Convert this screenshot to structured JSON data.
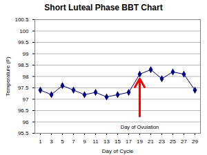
{
  "chart_data": {
    "type": "line",
    "title": "Short Luteal Phase BBT Chart",
    "x_label": "Day of Cycle",
    "y_label": "Temperature (F)",
    "x": [
      1,
      3,
      5,
      7,
      9,
      11,
      13,
      15,
      17,
      19,
      21,
      23,
      25,
      27,
      29
    ],
    "series": [
      {
        "name": "Temperature",
        "color": "#000080",
        "marker": "diamond",
        "line_style": "solid",
        "values": [
          97.4,
          97.2,
          97.6,
          97.4,
          97.2,
          97.3,
          97.1,
          97.2,
          97.3,
          98.1,
          98.3,
          97.9,
          98.2,
          98.1,
          97.4
        ]
      }
    ],
    "xlim": [
      0,
      30
    ],
    "xticks": [
      1,
      3,
      5,
      7,
      9,
      11,
      13,
      15,
      17,
      19,
      21,
      23,
      25,
      27,
      29
    ],
    "ylim": [
      95.5,
      100.5
    ],
    "yticks": [
      95.5,
      96,
      96.5,
      97,
      97.5,
      98,
      98.5,
      99,
      99.5,
      100,
      100.5
    ],
    "grid": true,
    "annotation": {
      "text": "Day of Ovulation",
      "x": 19,
      "y": 97.9,
      "color": "#ff0000"
    }
  }
}
